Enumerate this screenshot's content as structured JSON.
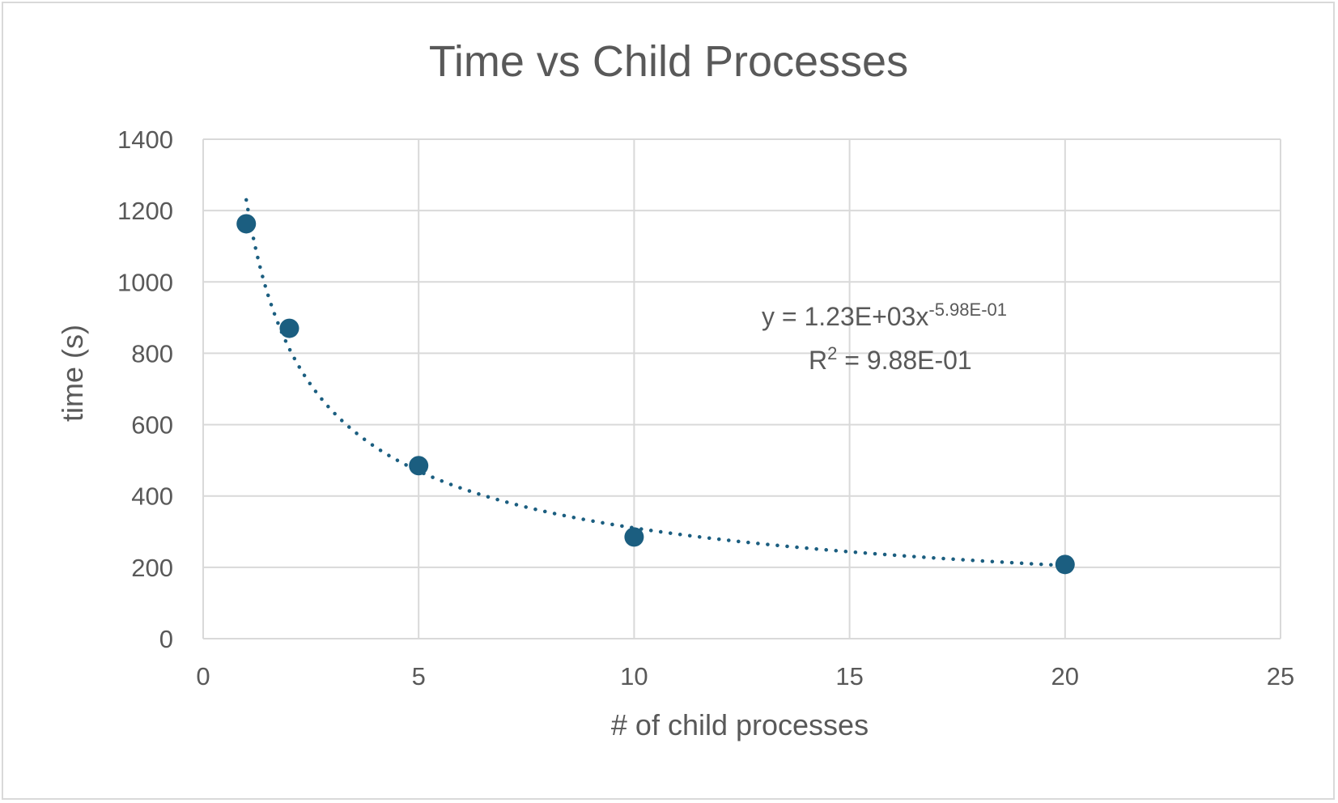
{
  "chart_data": {
    "type": "scatter",
    "title": "Time vs Child Processes",
    "xlabel": "# of child processes",
    "ylabel": "time (s)",
    "xlim": [
      0,
      25
    ],
    "ylim": [
      0,
      1400
    ],
    "x_ticks": [
      0,
      5,
      10,
      15,
      20,
      25
    ],
    "y_ticks": [
      0,
      200,
      400,
      600,
      800,
      1000,
      1200,
      1400
    ],
    "x_tick_labels": [
      "0",
      "5",
      "10",
      "15",
      "20",
      "25"
    ],
    "y_tick_labels": [
      "0",
      "200",
      "400",
      "600",
      "800",
      "1000",
      "1200",
      "1400"
    ],
    "grid": true,
    "legend": "none",
    "series": [
      {
        "x": [
          1,
          2,
          5,
          10,
          20
        ],
        "y": [
          1163,
          870,
          485,
          285,
          208
        ],
        "color": "#1b5e80"
      }
    ],
    "trendline": {
      "type": "power",
      "coefficient": 1230,
      "exponent": -0.598,
      "style": "dotted",
      "color": "#1b5e80",
      "x_range": [
        1,
        20
      ],
      "equation_text": "y = 1.23E+03x",
      "equation_exponent": "-5.98E-01",
      "r2_prefix": "R",
      "r2_sup": "2",
      "r2_text": " = 9.88E-01"
    },
    "gridline_color": "#d9d9d9",
    "label_color": "#595959"
  }
}
